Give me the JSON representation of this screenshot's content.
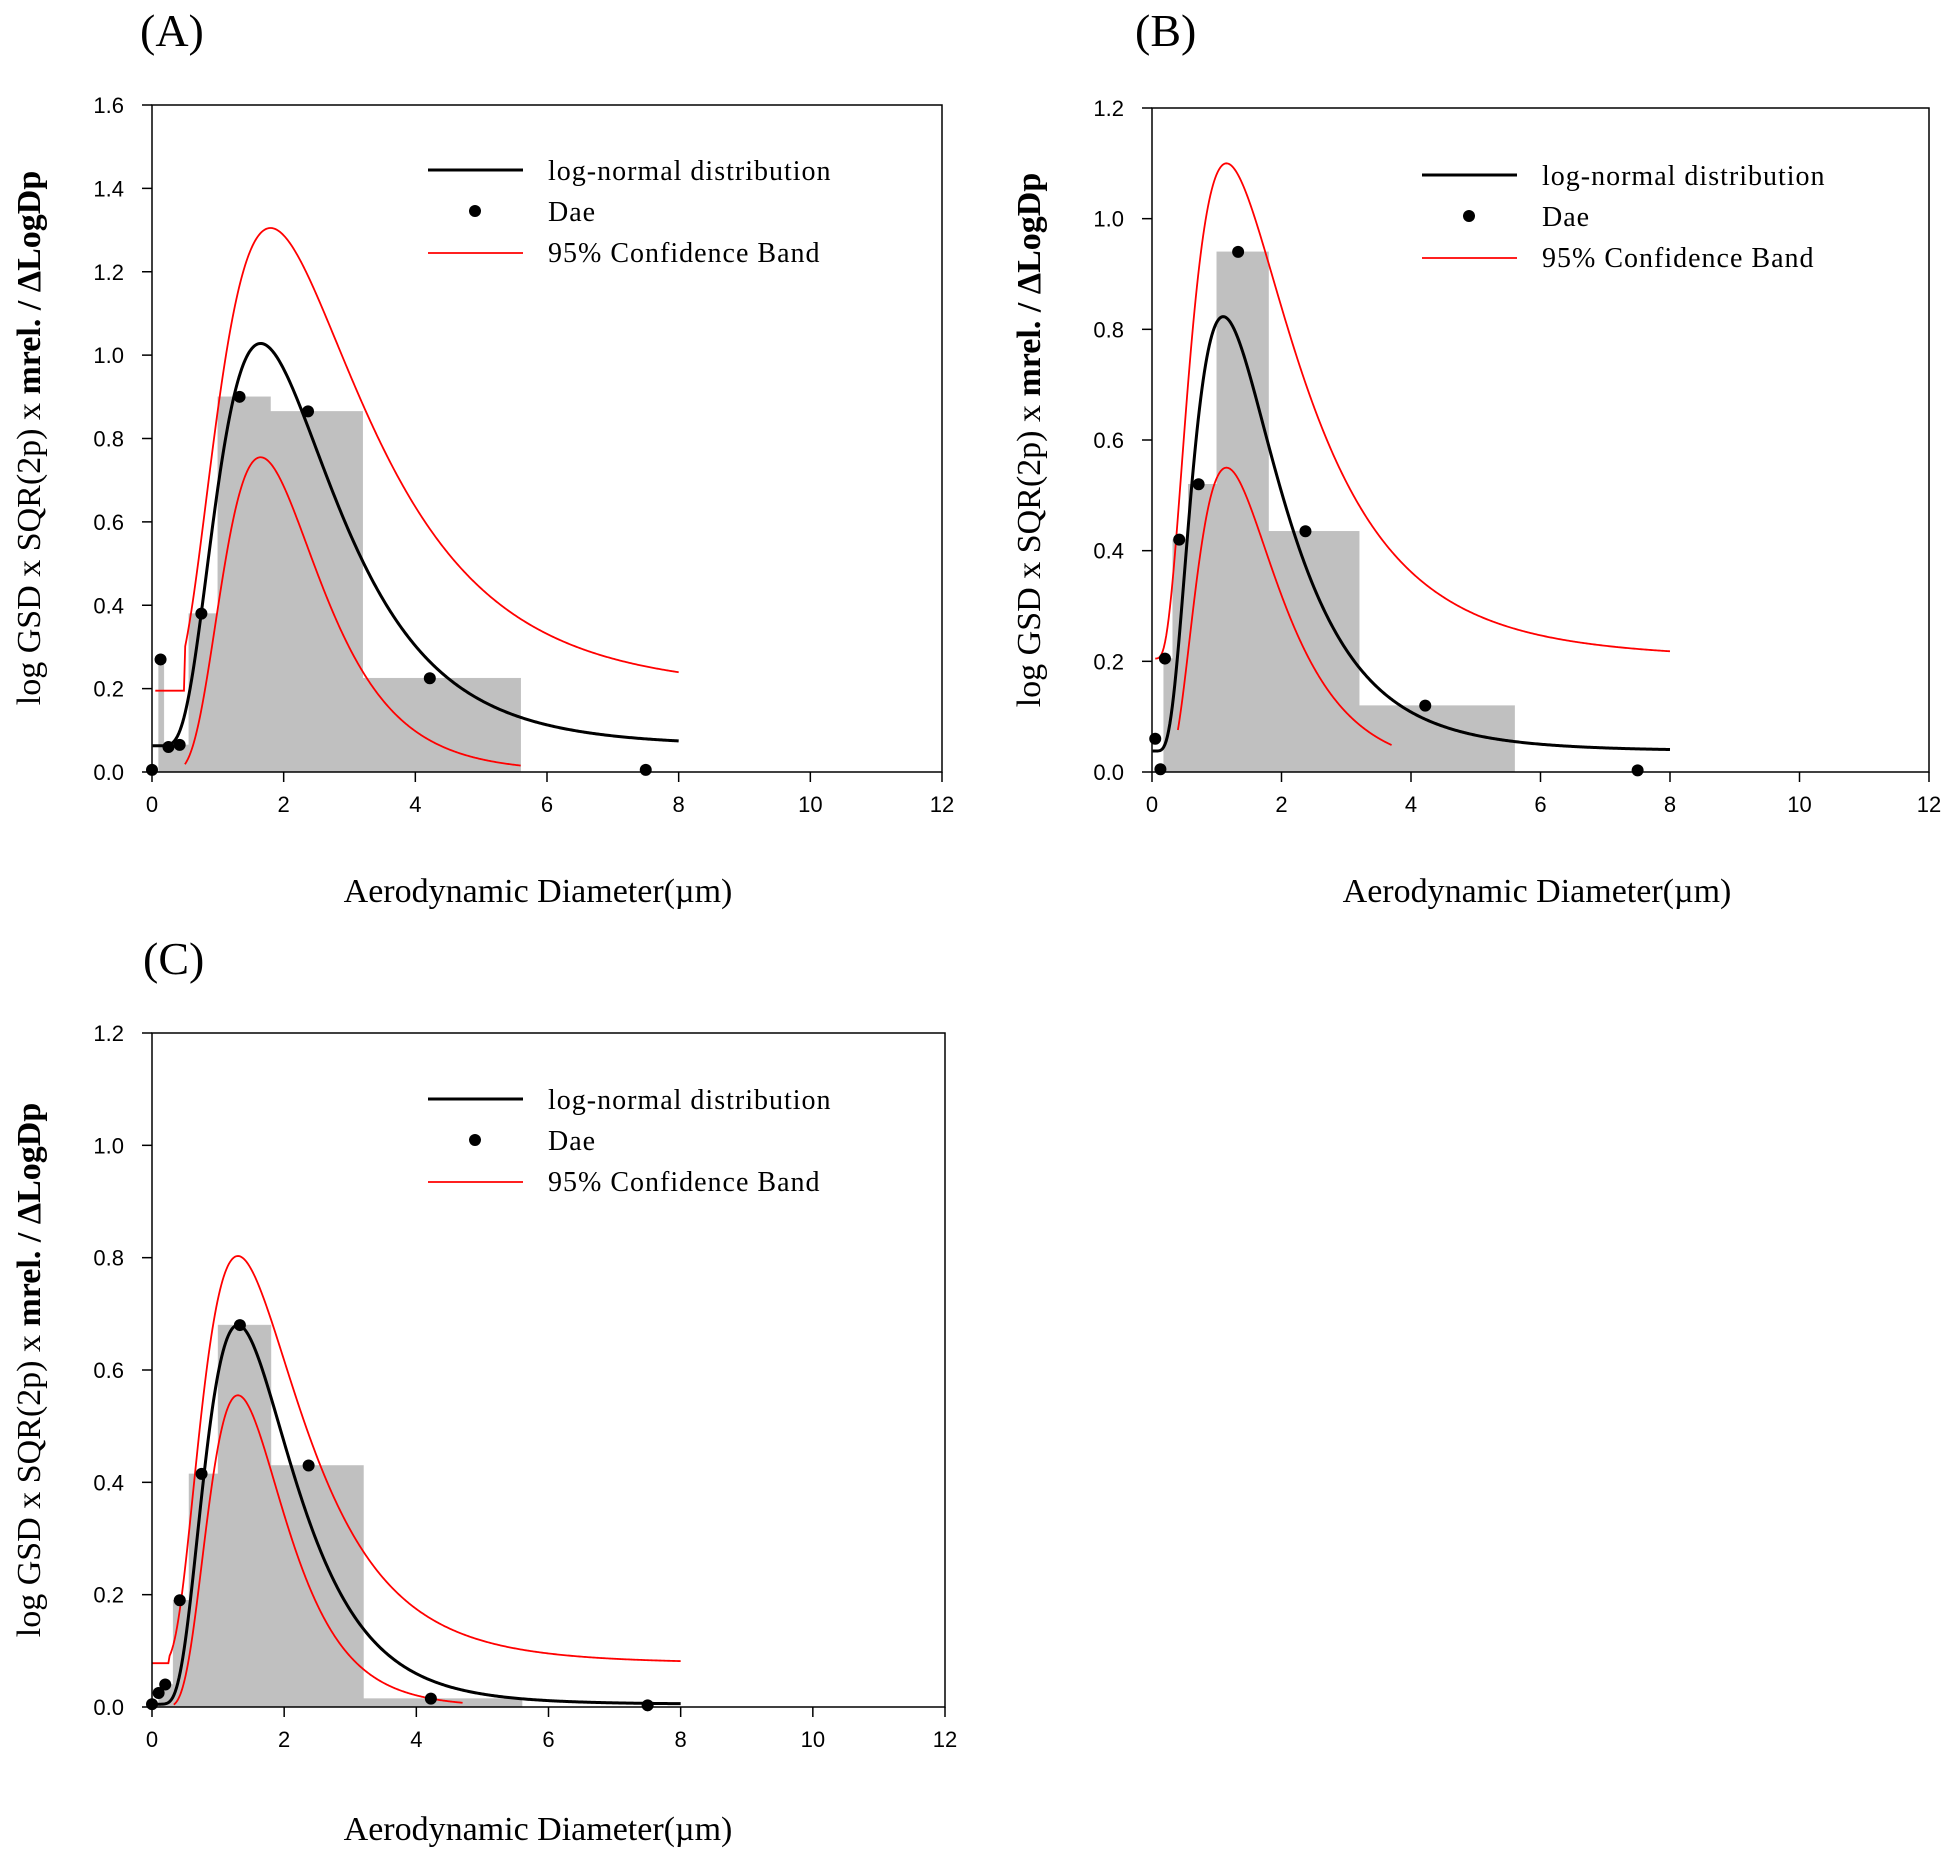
{
  "chart_data": [
    {
      "panel_label": "(A)",
      "type": "bar",
      "xlabel": "Aerodynamic Diameter(µm)",
      "ylabel_prefix": "log GSD x SQR(2p) x ",
      "ylabel_bold": "mrel. / ",
      "ylabel_delta": "Δ",
      "ylabel_suffix": "LogDp",
      "xlim": [
        0,
        12
      ],
      "ylim": [
        0,
        1.6
      ],
      "xticks": [
        0,
        2,
        4,
        6,
        8,
        10,
        12
      ],
      "xtick_labels": [
        "0",
        "2",
        "4",
        "6",
        "8",
        "10",
        "12"
      ],
      "yticks": [
        0,
        0.2,
        0.4,
        0.6,
        0.8,
        1.0,
        1.2,
        1.4,
        1.6
      ],
      "ytick_labels": [
        "0.0",
        "0.2",
        "0.4",
        "0.6",
        "0.8",
        "1.0",
        "1.2",
        "1.4",
        "1.6"
      ],
      "legend": {
        "position": "top-right",
        "entries": [
          "log-normal distribution",
          "Dae",
          "95% Confidence Band"
        ]
      },
      "histogram": [
        {
          "x0": 0.1,
          "x1": 0.18,
          "value": 0.27
        },
        {
          "x0": 0.18,
          "x1": 0.32,
          "value": 0.065
        },
        {
          "x0": 0.32,
          "x1": 0.56,
          "value": 0.065
        },
        {
          "x0": 0.56,
          "x1": 1.0,
          "value": 0.38
        },
        {
          "x0": 1.0,
          "x1": 1.8,
          "value": 0.9
        },
        {
          "x0": 1.8,
          "x1": 3.2,
          "value": 0.865
        },
        {
          "x0": 3.2,
          "x1": 5.6,
          "value": 0.225
        }
      ],
      "dae_points": [
        {
          "x": 0.0,
          "y": 0.005
        },
        {
          "x": 0.13,
          "y": 0.27
        },
        {
          "x": 0.25,
          "y": 0.06
        },
        {
          "x": 0.42,
          "y": 0.065
        },
        {
          "x": 0.75,
          "y": 0.38
        },
        {
          "x": 1.33,
          "y": 0.9
        },
        {
          "x": 2.37,
          "y": 0.865
        },
        {
          "x": 4.22,
          "y": 0.225
        },
        {
          "x": 7.5,
          "y": 0.005
        }
      ],
      "lognormal": {
        "offset": 0.063,
        "amplitude": 0.965,
        "median": 1.65,
        "gsd": 1.7,
        "x_end": 8
      },
      "upper_band": {
        "offset": 0.195,
        "amplitude": 1.11,
        "median": 1.8,
        "gsd": 1.8,
        "x_start": 0.05,
        "x_end": 8,
        "flat_to": 0.5
      },
      "lower_band": {
        "offset": 0,
        "amplitude": 0.755,
        "median": 1.65,
        "gsd": 1.55,
        "x_start": 0.5,
        "x_end": 5.6
      }
    },
    {
      "panel_label": "(B)",
      "type": "bar",
      "xlabel": "Aerodynamic Diameter(µm)",
      "ylabel_prefix": "log GSD x SQR(2p) x ",
      "ylabel_bold": "mrel. / ",
      "ylabel_delta": "Δ",
      "ylabel_suffix": "LogDp",
      "xlim": [
        0,
        12
      ],
      "ylim": [
        0,
        1.2
      ],
      "xticks": [
        0,
        2,
        4,
        6,
        8,
        10,
        12
      ],
      "xtick_labels": [
        "0",
        "2",
        "4",
        "6",
        "8",
        "10",
        "12"
      ],
      "yticks": [
        0,
        0.2,
        0.4,
        0.6,
        0.8,
        1.0,
        1.2
      ],
      "ytick_labels": [
        "0.0",
        "0.2",
        "0.4",
        "0.6",
        "0.8",
        "1.0",
        "1.2"
      ],
      "legend": {
        "position": "top-right",
        "entries": [
          "log-normal distribution",
          "Dae",
          "95% Confidence Band"
        ]
      },
      "histogram": [
        {
          "x0": 0.1,
          "x1": 0.18,
          "value": 0.005
        },
        {
          "x0": 0.18,
          "x1": 0.32,
          "value": 0.205
        },
        {
          "x0": 0.32,
          "x1": 0.56,
          "value": 0.42
        },
        {
          "x0": 0.56,
          "x1": 1.0,
          "value": 0.52
        },
        {
          "x0": 1.0,
          "x1": 1.8,
          "value": 0.94
        },
        {
          "x0": 1.8,
          "x1": 3.2,
          "value": 0.435
        },
        {
          "x0": 3.2,
          "x1": 5.6,
          "value": 0.12
        }
      ],
      "dae_points": [
        {
          "x": 0.05,
          "y": 0.06
        },
        {
          "x": 0.13,
          "y": 0.005
        },
        {
          "x": 0.2,
          "y": 0.205
        },
        {
          "x": 0.42,
          "y": 0.42
        },
        {
          "x": 0.72,
          "y": 0.52
        },
        {
          "x": 1.33,
          "y": 0.94
        },
        {
          "x": 2.37,
          "y": 0.435
        },
        {
          "x": 4.22,
          "y": 0.12
        },
        {
          "x": 7.5,
          "y": 0.003
        }
      ],
      "lognormal": {
        "offset": 0.038,
        "amplitude": 0.785,
        "median": 1.1,
        "gsd": 1.8,
        "x_end": 8
      },
      "upper_band": {
        "offset": 0.205,
        "amplitude": 0.895,
        "median": 1.15,
        "gsd": 1.95,
        "x_start": 0.05,
        "x_end": 8
      },
      "lower_band": {
        "offset": 0,
        "amplitude": 0.55,
        "median": 1.15,
        "gsd": 1.7,
        "x_start": 0.4,
        "x_end": 3.7
      }
    },
    {
      "panel_label": "(C)",
      "type": "bar",
      "xlabel": "Aerodynamic Diameter(µm)",
      "ylabel_prefix": "log GSD x SQR(2p) x ",
      "ylabel_bold": "mrel. / ",
      "ylabel_delta": "Δ",
      "ylabel_suffix": "LogDp",
      "xlim": [
        0,
        12
      ],
      "ylim": [
        0,
        1.2
      ],
      "xticks": [
        0,
        2,
        4,
        6,
        8,
        10,
        12
      ],
      "xtick_labels": [
        "0",
        "2",
        "4",
        "6",
        "8",
        "10",
        "12"
      ],
      "yticks": [
        0,
        0.2,
        0.4,
        0.6,
        0.8,
        1.0,
        1.2
      ],
      "ytick_labels": [
        "0.0",
        "0.2",
        "0.4",
        "0.6",
        "0.8",
        "1.0",
        "1.2"
      ],
      "legend": {
        "position": "top-right",
        "entries": [
          "log-normal distribution",
          "Dae",
          "95% Confidence Band"
        ]
      },
      "histogram": [
        {
          "x0": 0.1,
          "x1": 0.18,
          "value": 0.03
        },
        {
          "x0": 0.18,
          "x1": 0.32,
          "value": 0.04
        },
        {
          "x0": 0.32,
          "x1": 0.56,
          "value": 0.19
        },
        {
          "x0": 0.56,
          "x1": 1.0,
          "value": 0.415
        },
        {
          "x0": 1.0,
          "x1": 1.8,
          "value": 0.68
        },
        {
          "x0": 1.8,
          "x1": 3.2,
          "value": 0.43
        },
        {
          "x0": 3.2,
          "x1": 5.6,
          "value": 0.015
        }
      ],
      "dae_points": [
        {
          "x": 0.0,
          "y": 0.005
        },
        {
          "x": 0.1,
          "y": 0.025
        },
        {
          "x": 0.2,
          "y": 0.04
        },
        {
          "x": 0.42,
          "y": 0.19
        },
        {
          "x": 0.75,
          "y": 0.415
        },
        {
          "x": 1.33,
          "y": 0.68
        },
        {
          "x": 2.37,
          "y": 0.43
        },
        {
          "x": 4.22,
          "y": 0.015
        },
        {
          "x": 7.5,
          "y": 0.003
        }
      ],
      "lognormal": {
        "offset": 0.005,
        "amplitude": 0.675,
        "median": 1.3,
        "gsd": 1.65,
        "x_end": 8
      },
      "upper_band": {
        "offset": 0.078,
        "amplitude": 0.725,
        "median": 1.3,
        "gsd": 1.75,
        "x_start": 0.0,
        "x_end": 8,
        "flat_to": 0.25
      },
      "lower_band": {
        "offset": 0,
        "amplitude": 0.555,
        "median": 1.3,
        "gsd": 1.55,
        "x_start": 0.33,
        "x_end": 4.7
      }
    }
  ],
  "colors": {
    "histogram_fill": "#c0c0c0",
    "fit_line": "#000000",
    "confidence_band": "#ff0000",
    "points": "#000000"
  }
}
